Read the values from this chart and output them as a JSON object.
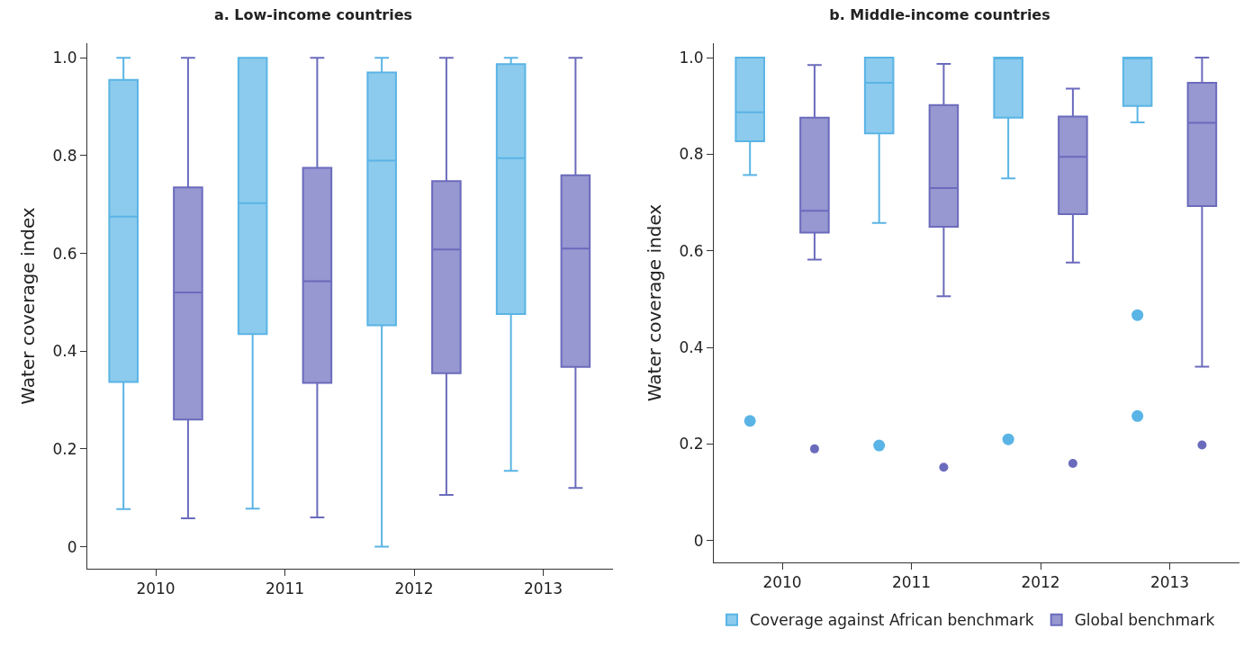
{
  "chart_data": [
    {
      "type": "box",
      "title": "a. Low-income countries",
      "ylabel": "Water coverage index",
      "categories": [
        "2010",
        "2011",
        "2012",
        "2013"
      ],
      "ylim": [
        -0.045,
        1.03
      ],
      "yticks": [
        0,
        0.2,
        0.4,
        0.6,
        0.8,
        {
          "value": 1,
          "label": "1.0"
        }
      ],
      "grid": false,
      "legend": false,
      "series": [
        {
          "color": "#5ab4e5",
          "boxes": [
            {
              "low": 0.077,
              "q1": 0.337,
              "median": 0.675,
              "q3": 0.955,
              "high": 1.0
            },
            {
              "low": 0.078,
              "q1": 0.435,
              "median": 0.703,
              "q3": 1.0,
              "high": 1.0
            },
            {
              "low": 0,
              "q1": 0.453,
              "median": 0.79,
              "q3": 0.97,
              "high": 1.0
            },
            {
              "low": 0.155,
              "q1": 0.476,
              "median": 0.795,
              "q3": 0.987,
              "high": 1.0
            }
          ]
        },
        {
          "color": "#6b6bbd",
          "boxes": [
            {
              "low": 0.058,
              "q1": 0.26,
              "median": 0.52,
              "q3": 0.735,
              "high": 1.0
            },
            {
              "low": 0.06,
              "q1": 0.335,
              "median": 0.543,
              "q3": 0.775,
              "high": 1.0
            },
            {
              "low": 0.106,
              "q1": 0.355,
              "median": 0.608,
              "q3": 0.748,
              "high": 1.0
            },
            {
              "low": 0.12,
              "q1": 0.368,
              "median": 0.61,
              "q3": 0.76,
              "high": 1.0
            }
          ]
        }
      ]
    },
    {
      "type": "box",
      "title": "b. Middle-income countries",
      "ylabel": "Water coverage index",
      "categories": [
        "2010",
        "2011",
        "2012",
        "2013"
      ],
      "ylim": [
        -0.045,
        1.03
      ],
      "yticks": [
        0,
        0.2,
        0.4,
        0.6,
        0.8,
        {
          "value": 1,
          "label": "1.0"
        }
      ],
      "grid": false,
      "legend": "bottom",
      "series": [
        {
          "name": "Coverage against African benchmark",
          "color": "#5ab4e5",
          "boxes": [
            {
              "low": 0.757,
              "q1": 0.827,
              "median": 0.887,
              "q3": 1.0,
              "high": 1.0,
              "outliers": [
                0.248
              ]
            },
            {
              "low": 0.658,
              "q1": 0.843,
              "median": 0.948,
              "q3": 1.0,
              "high": 1.0,
              "outliers": [
                0.197
              ]
            },
            {
              "low": 0.75,
              "q1": 0.876,
              "median": 1.0,
              "q3": 1.0,
              "high": 1.0,
              "outliers": [
                0.21
              ]
            },
            {
              "low": 0.866,
              "q1": 0.9,
              "median": 1.0,
              "q3": 1.0,
              "high": 1.0,
              "outliers": [
                0.467,
                0.258
              ]
            }
          ]
        },
        {
          "name": "Global benchmark",
          "color": "#6b6bbd",
          "boxes": [
            {
              "low": 0.582,
              "q1": 0.638,
              "median": 0.683,
              "q3": 0.876,
              "high": 0.985,
              "outliers": [
                0.19
              ]
            },
            {
              "low": 0.506,
              "q1": 0.65,
              "median": 0.73,
              "q3": 0.902,
              "high": 0.987,
              "outliers": [
                0.152
              ]
            },
            {
              "low": 0.576,
              "q1": 0.676,
              "median": 0.795,
              "q3": 0.878,
              "high": 0.936,
              "outliers": [
                0.16
              ]
            },
            {
              "low": 0.36,
              "q1": 0.693,
              "median": 0.865,
              "q3": 0.948,
              "high": 1.0,
              "outliers": [
                0.198
              ]
            }
          ]
        }
      ]
    }
  ]
}
